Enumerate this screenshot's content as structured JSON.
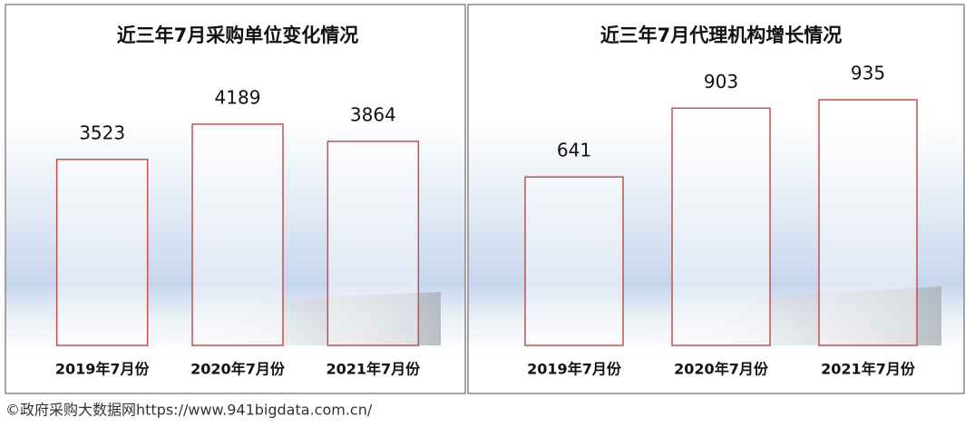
{
  "chart_data": [
    {
      "type": "bar",
      "title": "近三年7月采购单位变化情况",
      "categories": [
        "2019年7月份",
        "2020年7月份",
        "2021年7月份"
      ],
      "values": [
        3523,
        4189,
        3864
      ],
      "color": "#c0504d"
    },
    {
      "type": "bar",
      "title": "近三年7月代理机构增长情况",
      "categories": [
        "2019年7月份",
        "2020年7月份",
        "2021年7月份"
      ],
      "values": [
        641,
        903,
        935
      ],
      "color": "#c0504d"
    }
  ],
  "footer": "©政府采购大数据网https://www.941bigdata.com.cn/"
}
